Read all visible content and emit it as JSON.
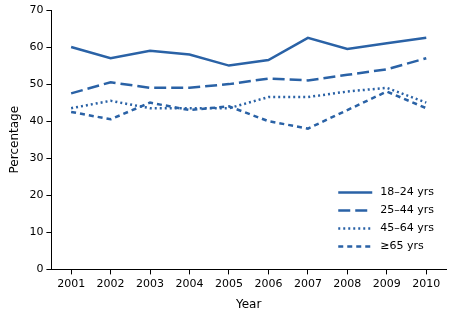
{
  "chart_data": {
    "type": "line",
    "x_label": "Year",
    "y_label": "Percentage",
    "categories": [
      "2001",
      "2002",
      "2003",
      "2004",
      "2005",
      "2006",
      "2007",
      "2008",
      "2009",
      "2010"
    ],
    "series": [
      {
        "name": "18–24 yrs",
        "color": "#2a62a6",
        "line_style": "solid",
        "values": [
          60,
          57,
          59,
          58,
          55,
          56.5,
          62.5,
          59.5,
          61,
          62.5
        ]
      },
      {
        "name": "25–44 yrs",
        "color": "#2a62a6",
        "line_style": "long_dashed",
        "values": [
          47.5,
          50.5,
          49,
          49,
          50,
          51.5,
          51,
          52.5,
          54,
          57
        ]
      },
      {
        "name": "45–64 yrs",
        "color": "#2a62a6",
        "line_style": "dotted",
        "values": [
          43.5,
          45.5,
          43.5,
          43.5,
          43.5,
          46.5,
          46.5,
          48,
          49,
          45
        ]
      },
      {
        "name": "≥65 yrs",
        "color": "#2a62a6",
        "line_style": "dashed",
        "values": [
          42.5,
          40.5,
          45,
          43,
          44,
          40,
          38,
          43,
          48,
          43.5
        ]
      }
    ],
    "ylim": [
      0,
      70
    ],
    "yticks": [
      0,
      10,
      20,
      30,
      40,
      50,
      60,
      70
    ],
    "grid": false,
    "legend": "lower right"
  }
}
